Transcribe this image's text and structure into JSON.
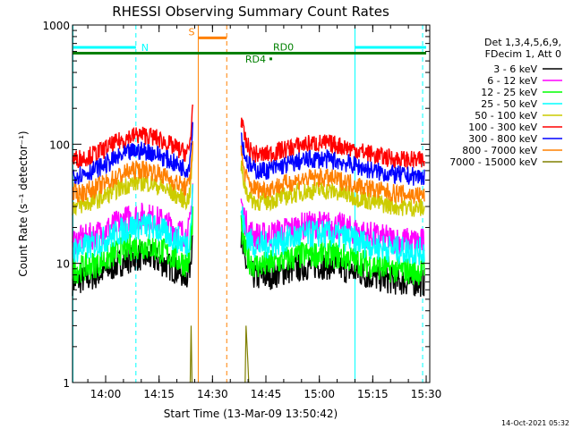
{
  "chart_data": {
    "type": "line",
    "title": "RHESSI Observing Summary Count Rates",
    "xlabel": "Start Time (13-Mar-09 13:50:42)",
    "ylabel": "Count Rate (s⁻¹ detector⁻¹)",
    "y_scale": "log",
    "ylim": [
      1,
      1000
    ],
    "xlim": [
      "13:50:42",
      "15:31:00"
    ],
    "x_tick_labels": [
      "14:00",
      "14:15",
      "14:30",
      "14:45",
      "15:00",
      "15:15",
      "15:30"
    ],
    "y_tick_labels": [
      "1",
      "10",
      "100",
      "1000"
    ],
    "legend_header": [
      "Det 1,3,4,5,6,9,",
      "FDecim 1, Att 0"
    ],
    "legend_position": "right",
    "series": [
      {
        "name": "3 - 6 keV",
        "color": "#000000",
        "base": 6.8
      },
      {
        "name": "6 - 12 keV",
        "color": "#ff00ff",
        "base": 15
      },
      {
        "name": "12 - 25 keV",
        "color": "#00ff00",
        "base": 8.5
      },
      {
        "name": "25 - 50 keV",
        "color": "#00ffff",
        "base": 12.5
      },
      {
        "name": "50 - 100 keV",
        "color": "#cccc00",
        "base": 29
      },
      {
        "name": "100 - 300 keV",
        "color": "#ff0000",
        "base": 72
      },
      {
        "name": "300 - 800 keV",
        "color": "#0000ff",
        "base": 53
      },
      {
        "name": "800 - 7000 keV",
        "color": "#ff8000",
        "base": 37
      },
      {
        "name": "7000 - 15000 keV",
        "color": "#808000",
        "base": 0
      }
    ],
    "data_gaps": [
      {
        "start": "14:24:30",
        "end": "14:38:00"
      }
    ],
    "flag_bars": [
      {
        "label": "N",
        "color": "#00ffff",
        "value": 650,
        "start": "13:50:42",
        "end": "14:08:30"
      },
      {
        "label": "N",
        "color": "#00ffff",
        "value": 650,
        "start": "15:10:00",
        "end": "15:30:00"
      },
      {
        "label": "S",
        "color": "#ff8000",
        "value": 780,
        "start": "14:26:00",
        "end": "14:34:00"
      },
      {
        "label": "RD0",
        "color": "#008000",
        "value": 580,
        "start": "13:50:42",
        "end": "15:30:00"
      },
      {
        "label": "RD4",
        "color": "#008000",
        "value": 520,
        "start": "14:46:00",
        "end": "14:46:30"
      }
    ],
    "night_markers": [
      "14:08:30",
      "15:10:00",
      "15:29:00"
    ],
    "saa_markers": [
      "14:26:00",
      "14:34:00"
    ]
  },
  "footer": {
    "timestamp": "14-Oct-2021 05:32"
  }
}
